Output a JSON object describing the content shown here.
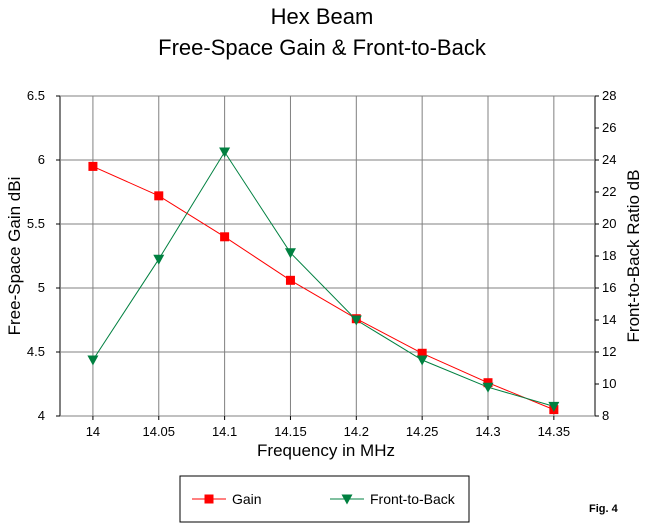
{
  "chart_data": {
    "type": "line",
    "title": "Hex Beam",
    "subtitle": "Free-Space Gain & Front-to-Back",
    "xlabel": "Frequency in MHz",
    "ylabel": "Free-Space Gain dBi",
    "y2label": "Front-to-Back Ratio dB",
    "categories": [
      "14",
      "14.05",
      "14.1",
      "14.15",
      "14.2",
      "14.25",
      "14.3",
      "14.35"
    ],
    "ylim": [
      4,
      6.5
    ],
    "y2lim": [
      8,
      28
    ],
    "yticks": [
      "4",
      "4.5",
      "5",
      "5.5",
      "6",
      "6.5"
    ],
    "y2ticks": [
      "8",
      "10",
      "12",
      "14",
      "16",
      "18",
      "20",
      "22",
      "24",
      "26",
      "28"
    ],
    "grid": true,
    "legend_position": "bottom",
    "series": [
      {
        "name": "Gain",
        "axis": "left",
        "color": "#ff0000",
        "marker": "square",
        "values": [
          5.95,
          5.72,
          5.4,
          5.06,
          4.76,
          4.49,
          4.26,
          4.05
        ]
      },
      {
        "name": "Front-to-Back",
        "axis": "right",
        "color": "#008040",
        "marker": "triangle-down",
        "values": [
          11.5,
          17.8,
          24.5,
          18.2,
          14.0,
          11.5,
          9.8,
          8.6
        ]
      }
    ],
    "annotation": "Fig. 4"
  }
}
